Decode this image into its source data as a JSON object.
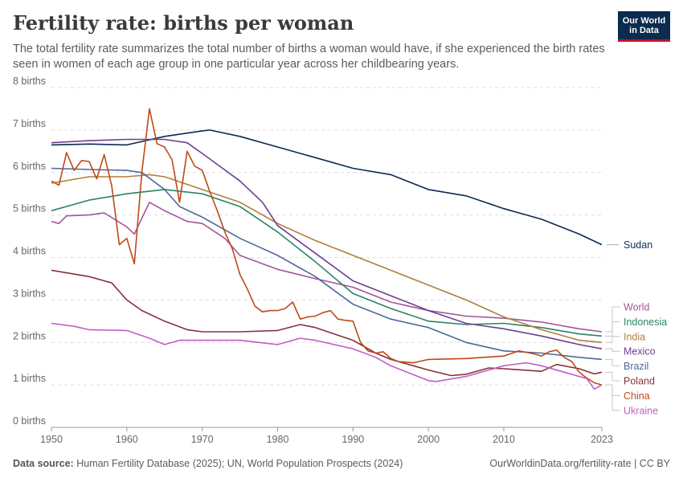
{
  "header": {
    "title": "Fertility rate: births per woman",
    "subtitle": "The total fertility rate summarizes the total number of births a woman would have, if she experienced the birth rates seen in women of each age group in one particular year across her childbearing years.",
    "logo_text": "Our World in Data"
  },
  "footer": {
    "source_label": "Data source:",
    "source_text": "Human Fertility Database (2025); UN, World Population Prospects (2024)",
    "right_text": "OurWorldinData.org/fertility-rate | CC BY"
  },
  "chart_data": {
    "type": "line",
    "xlim": [
      1950,
      2023
    ],
    "ylim": [
      0,
      8
    ],
    "x_ticks": [
      1950,
      1960,
      1970,
      1980,
      1990,
      2000,
      2010,
      2023
    ],
    "y_ticks": [
      0,
      1,
      2,
      3,
      4,
      5,
      6,
      7,
      8
    ],
    "y_tick_labels": [
      "0 births",
      "1 births",
      "2 births",
      "3 births",
      "4 births",
      "5 births",
      "6 births",
      "7 births",
      "8 births"
    ],
    "grid": "horizontal dashed",
    "legend": "right, labels at line ends",
    "series": [
      {
        "name": "Sudan",
        "color": "#0b2b4f",
        "points": [
          [
            1950,
            6.65
          ],
          [
            1955,
            6.67
          ],
          [
            1960,
            6.65
          ],
          [
            1965,
            6.85
          ],
          [
            1970,
            6.98
          ],
          [
            1971,
            7.0
          ],
          [
            1975,
            6.85
          ],
          [
            1980,
            6.6
          ],
          [
            1985,
            6.35
          ],
          [
            1990,
            6.1
          ],
          [
            1995,
            5.95
          ],
          [
            2000,
            5.6
          ],
          [
            2005,
            5.45
          ],
          [
            2010,
            5.15
          ],
          [
            2015,
            4.9
          ],
          [
            2020,
            4.55
          ],
          [
            2023,
            4.3
          ]
        ]
      },
      {
        "name": "World",
        "color": "#a2559c",
        "points": [
          [
            1950,
            4.85
          ],
          [
            1951,
            4.8
          ],
          [
            1952,
            4.98
          ],
          [
            1955,
            5.0
          ],
          [
            1957,
            5.05
          ],
          [
            1960,
            4.72
          ],
          [
            1961,
            4.55
          ],
          [
            1963,
            5.3
          ],
          [
            1965,
            5.1
          ],
          [
            1968,
            4.85
          ],
          [
            1970,
            4.8
          ],
          [
            1973,
            4.45
          ],
          [
            1975,
            4.05
          ],
          [
            1978,
            3.85
          ],
          [
            1980,
            3.72
          ],
          [
            1985,
            3.5
          ],
          [
            1990,
            3.3
          ],
          [
            1995,
            2.95
          ],
          [
            2000,
            2.75
          ],
          [
            2005,
            2.62
          ],
          [
            2010,
            2.57
          ],
          [
            2015,
            2.48
          ],
          [
            2020,
            2.32
          ],
          [
            2023,
            2.25
          ]
        ]
      },
      {
        "name": "Indonesia",
        "color": "#2a8465",
        "points": [
          [
            1950,
            5.1
          ],
          [
            1955,
            5.35
          ],
          [
            1960,
            5.5
          ],
          [
            1965,
            5.6
          ],
          [
            1970,
            5.5
          ],
          [
            1975,
            5.2
          ],
          [
            1980,
            4.6
          ],
          [
            1985,
            3.9
          ],
          [
            1990,
            3.15
          ],
          [
            1995,
            2.8
          ],
          [
            2000,
            2.5
          ],
          [
            2005,
            2.42
          ],
          [
            2010,
            2.45
          ],
          [
            2015,
            2.35
          ],
          [
            2020,
            2.2
          ],
          [
            2023,
            2.15
          ]
        ]
      },
      {
        "name": "India",
        "color": "#b07e3e",
        "points": [
          [
            1950,
            5.75
          ],
          [
            1955,
            5.9
          ],
          [
            1960,
            5.9
          ],
          [
            1963,
            5.95
          ],
          [
            1965,
            5.9
          ],
          [
            1970,
            5.6
          ],
          [
            1975,
            5.3
          ],
          [
            1980,
            4.8
          ],
          [
            1985,
            4.4
          ],
          [
            1990,
            4.05
          ],
          [
            1995,
            3.7
          ],
          [
            2000,
            3.35
          ],
          [
            2005,
            3.0
          ],
          [
            2010,
            2.6
          ],
          [
            2015,
            2.3
          ],
          [
            2020,
            2.05
          ],
          [
            2023,
            2.0
          ]
        ]
      },
      {
        "name": "Mexico",
        "color": "#6d3e91",
        "points": [
          [
            1950,
            6.7
          ],
          [
            1955,
            6.75
          ],
          [
            1960,
            6.78
          ],
          [
            1965,
            6.78
          ],
          [
            1968,
            6.7
          ],
          [
            1970,
            6.45
          ],
          [
            1975,
            5.8
          ],
          [
            1978,
            5.3
          ],
          [
            1980,
            4.75
          ],
          [
            1985,
            4.1
          ],
          [
            1990,
            3.45
          ],
          [
            1995,
            3.1
          ],
          [
            2000,
            2.75
          ],
          [
            2005,
            2.45
          ],
          [
            2010,
            2.32
          ],
          [
            2015,
            2.15
          ],
          [
            2020,
            1.95
          ],
          [
            2023,
            1.85
          ]
        ]
      },
      {
        "name": "Brazil",
        "color": "#4c6a9c",
        "points": [
          [
            1950,
            6.1
          ],
          [
            1955,
            6.07
          ],
          [
            1960,
            6.05
          ],
          [
            1962,
            6.0
          ],
          [
            1965,
            5.6
          ],
          [
            1967,
            5.2
          ],
          [
            1970,
            4.95
          ],
          [
            1975,
            4.45
          ],
          [
            1980,
            4.05
          ],
          [
            1985,
            3.55
          ],
          [
            1990,
            2.9
          ],
          [
            1995,
            2.55
          ],
          [
            2000,
            2.35
          ],
          [
            2005,
            2.0
          ],
          [
            2010,
            1.8
          ],
          [
            2015,
            1.75
          ],
          [
            2020,
            1.65
          ],
          [
            2023,
            1.6
          ]
        ]
      },
      {
        "name": "Poland",
        "color": "#883039",
        "points": [
          [
            1950,
            3.7
          ],
          [
            1955,
            3.55
          ],
          [
            1958,
            3.4
          ],
          [
            1960,
            3.0
          ],
          [
            1962,
            2.75
          ],
          [
            1965,
            2.5
          ],
          [
            1968,
            2.3
          ],
          [
            1970,
            2.25
          ],
          [
            1975,
            2.25
          ],
          [
            1980,
            2.28
          ],
          [
            1983,
            2.42
          ],
          [
            1985,
            2.35
          ],
          [
            1990,
            2.05
          ],
          [
            1993,
            1.75
          ],
          [
            1995,
            1.6
          ],
          [
            2000,
            1.35
          ],
          [
            2003,
            1.22
          ],
          [
            2005,
            1.25
          ],
          [
            2008,
            1.4
          ],
          [
            2010,
            1.38
          ],
          [
            2015,
            1.32
          ],
          [
            2017,
            1.48
          ],
          [
            2020,
            1.38
          ],
          [
            2022,
            1.26
          ],
          [
            2023,
            1.3
          ]
        ]
      },
      {
        "name": "China",
        "color": "#bc4a17",
        "points": [
          [
            1950,
            5.8
          ],
          [
            1951,
            5.7
          ],
          [
            1952,
            6.47
          ],
          [
            1953,
            6.05
          ],
          [
            1954,
            6.28
          ],
          [
            1955,
            6.26
          ],
          [
            1956,
            5.85
          ],
          [
            1957,
            6.42
          ],
          [
            1958,
            5.68
          ],
          [
            1959,
            4.3
          ],
          [
            1960,
            4.45
          ],
          [
            1961,
            3.85
          ],
          [
            1962,
            6.02
          ],
          [
            1963,
            7.5
          ],
          [
            1964,
            6.68
          ],
          [
            1965,
            6.6
          ],
          [
            1966,
            6.3
          ],
          [
            1967,
            5.3
          ],
          [
            1968,
            6.5
          ],
          [
            1969,
            6.15
          ],
          [
            1970,
            6.05
          ],
          [
            1971,
            5.55
          ],
          [
            1972,
            5.1
          ],
          [
            1973,
            4.6
          ],
          [
            1974,
            4.2
          ],
          [
            1975,
            3.6
          ],
          [
            1976,
            3.25
          ],
          [
            1977,
            2.85
          ],
          [
            1978,
            2.72
          ],
          [
            1979,
            2.75
          ],
          [
            1980,
            2.75
          ],
          [
            1981,
            2.8
          ],
          [
            1982,
            2.95
          ],
          [
            1983,
            2.55
          ],
          [
            1984,
            2.6
          ],
          [
            1985,
            2.62
          ],
          [
            1986,
            2.7
          ],
          [
            1987,
            2.75
          ],
          [
            1988,
            2.55
          ],
          [
            1989,
            2.52
          ],
          [
            1990,
            2.5
          ],
          [
            1991,
            2.0
          ],
          [
            1992,
            1.8
          ],
          [
            1993,
            1.75
          ],
          [
            1994,
            1.78
          ],
          [
            1995,
            1.62
          ],
          [
            1996,
            1.55
          ],
          [
            1998,
            1.52
          ],
          [
            2000,
            1.6
          ],
          [
            2005,
            1.62
          ],
          [
            2010,
            1.68
          ],
          [
            2012,
            1.8
          ],
          [
            2014,
            1.73
          ],
          [
            2015,
            1.68
          ],
          [
            2016,
            1.78
          ],
          [
            2017,
            1.82
          ],
          [
            2018,
            1.65
          ],
          [
            2019,
            1.55
          ],
          [
            2020,
            1.3
          ],
          [
            2021,
            1.16
          ],
          [
            2022,
            1.05
          ],
          [
            2023,
            1.0
          ]
        ]
      },
      {
        "name": "Ukraine",
        "color": "#c05ec7",
        "points": [
          [
            1950,
            2.45
          ],
          [
            1953,
            2.38
          ],
          [
            1955,
            2.3
          ],
          [
            1960,
            2.28
          ],
          [
            1963,
            2.1
          ],
          [
            1965,
            1.95
          ],
          [
            1967,
            2.05
          ],
          [
            1970,
            2.05
          ],
          [
            1975,
            2.05
          ],
          [
            1980,
            1.95
          ],
          [
            1983,
            2.1
          ],
          [
            1985,
            2.05
          ],
          [
            1990,
            1.85
          ],
          [
            1993,
            1.65
          ],
          [
            1995,
            1.45
          ],
          [
            2000,
            1.1
          ],
          [
            2001,
            1.08
          ],
          [
            2005,
            1.2
          ],
          [
            2010,
            1.45
          ],
          [
            2013,
            1.52
          ],
          [
            2015,
            1.45
          ],
          [
            2018,
            1.3
          ],
          [
            2020,
            1.2
          ],
          [
            2021,
            1.15
          ],
          [
            2022,
            0.9
          ],
          [
            2023,
            1.0
          ]
        ]
      }
    ],
    "end_labels": [
      {
        "name": "Sudan",
        "color": "#0b2b4f",
        "value": 4.3
      },
      {
        "name": "World",
        "color": "#a2559c",
        "value": 2.25
      },
      {
        "name": "Indonesia",
        "color": "#2a8465",
        "value": 2.15
      },
      {
        "name": "India",
        "color": "#b07e3e",
        "value": 2.0
      },
      {
        "name": "Mexico",
        "color": "#6d3e91",
        "value": 1.85
      },
      {
        "name": "Brazil",
        "color": "#4c6a9c",
        "value": 1.6
      },
      {
        "name": "Poland",
        "color": "#883039",
        "value": 1.3
      },
      {
        "name": "China",
        "color": "#bc4a17",
        "value": 1.0
      },
      {
        "name": "Ukraine",
        "color": "#c05ec7",
        "value": 1.0
      }
    ]
  }
}
